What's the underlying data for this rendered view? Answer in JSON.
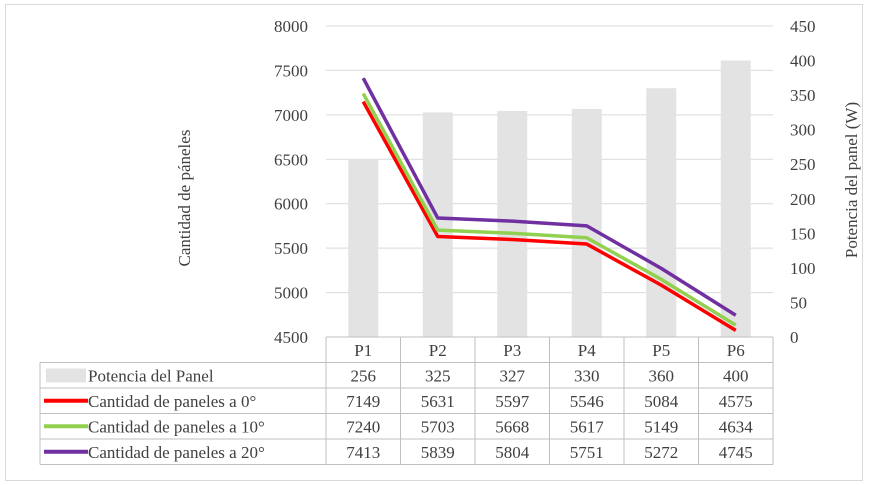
{
  "chart_data": {
    "type": "bar+line",
    "categories": [
      "P1",
      "P2",
      "P3",
      "P4",
      "P5",
      "P6"
    ],
    "ylabel_left": "Cantidad de páneles",
    "ylabel_right": "Potencia del panel (W)",
    "ylim_left": [
      4500,
      8000
    ],
    "ylim_right": [
      0,
      450
    ],
    "yticks_left": [
      "4500",
      "5000",
      "5500",
      "6000",
      "6500",
      "7000",
      "7500",
      "8000"
    ],
    "yticks_right": [
      "0",
      "50",
      "100",
      "150",
      "200",
      "250",
      "300",
      "350",
      "400",
      "450"
    ],
    "grid": true,
    "legend": "data-table",
    "bar_series": {
      "name": "Potencia del Panel",
      "axis": "right",
      "color": "#e3e3e3",
      "values": [
        256,
        325,
        327,
        330,
        360,
        400
      ]
    },
    "line_series": [
      {
        "name": "Cantidad de paneles a 0°",
        "axis": "left",
        "color": "#ff0000",
        "values": [
          7149,
          5631,
          5597,
          5546,
          5084,
          4575
        ]
      },
      {
        "name": "Cantidad de paneles a 10°",
        "axis": "left",
        "color": "#92d050",
        "values": [
          7240,
          5703,
          5668,
          5617,
          5149,
          4634
        ]
      },
      {
        "name": "Cantidad de paneles a 20°",
        "axis": "left",
        "color": "#7030a0",
        "values": [
          7413,
          5839,
          5804,
          5751,
          5272,
          4745
        ]
      }
    ]
  }
}
